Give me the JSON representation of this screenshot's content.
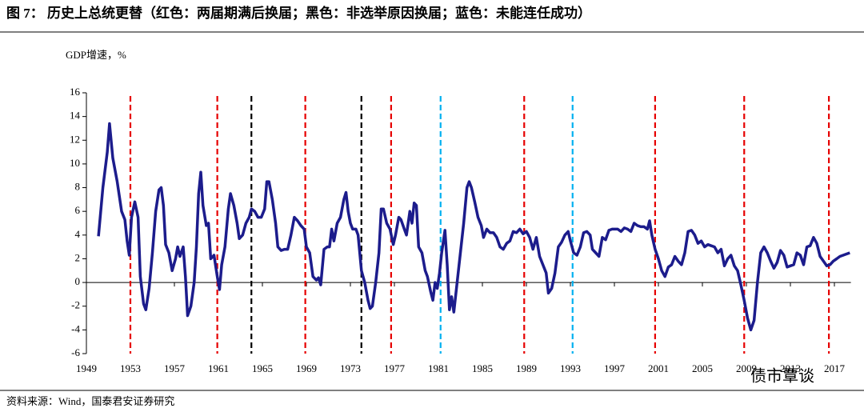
{
  "chart_data": {
    "type": "line",
    "title": "图 7： 历史上总统更替（红色：两届期满后换届；黑色：非选举原因换届；蓝色：未能连任成功）",
    "y_label": "GDP增速，%",
    "source": "资料来源：Wind，国泰君安证券研究",
    "watermark": "债市覃谈",
    "xlim": [
      1949,
      2018.5
    ],
    "xticks": [
      1949,
      1953,
      1957,
      1961,
      1965,
      1969,
      1973,
      1977,
      1981,
      1985,
      1989,
      1993,
      1997,
      2001,
      2005,
      2009,
      2013,
      2017
    ],
    "ylim": [
      -6,
      16
    ],
    "yticks": [
      -6,
      -4,
      -2,
      0,
      2,
      4,
      6,
      8,
      10,
      12,
      14,
      16
    ],
    "vlines": [
      {
        "x": 1953.0,
        "color": "#e60000"
      },
      {
        "x": 1960.9,
        "color": "#e60000"
      },
      {
        "x": 1964.0,
        "color": "#000000"
      },
      {
        "x": 1968.9,
        "color": "#e60000"
      },
      {
        "x": 1974.0,
        "color": "#000000"
      },
      {
        "x": 1976.7,
        "color": "#e60000"
      },
      {
        "x": 1981.2,
        "color": "#00b0f0"
      },
      {
        "x": 1988.8,
        "color": "#e60000"
      },
      {
        "x": 1993.2,
        "color": "#00b0f0"
      },
      {
        "x": 2000.7,
        "color": "#e60000"
      },
      {
        "x": 2008.8,
        "color": "#e60000"
      },
      {
        "x": 2016.5,
        "color": "#e60000"
      }
    ],
    "x": [
      1950.1,
      1950.5,
      1950.9,
      1951.1,
      1951.4,
      1951.8,
      1952.2,
      1952.5,
      1952.7,
      1952.9,
      1953.1,
      1953.4,
      1953.7,
      1953.9,
      1954.2,
      1954.4,
      1954.7,
      1955.0,
      1955.3,
      1955.6,
      1955.8,
      1956.0,
      1956.2,
      1956.5,
      1956.8,
      1957.1,
      1957.3,
      1957.5,
      1957.8,
      1958.0,
      1958.2,
      1958.5,
      1958.8,
      1959.0,
      1959.2,
      1959.4,
      1959.6,
      1959.9,
      1960.1,
      1960.3,
      1960.6,
      1960.9,
      1961.1,
      1961.3,
      1961.6,
      1961.9,
      1962.1,
      1962.4,
      1962.7,
      1962.9,
      1963.2,
      1963.5,
      1963.8,
      1964.0,
      1964.3,
      1964.6,
      1964.9,
      1965.2,
      1965.4,
      1965.6,
      1965.9,
      1966.2,
      1966.4,
      1966.7,
      1967.0,
      1967.3,
      1967.6,
      1967.9,
      1968.2,
      1968.5,
      1968.8,
      1969.0,
      1969.3,
      1969.6,
      1969.9,
      1970.1,
      1970.3,
      1970.6,
      1970.9,
      1971.1,
      1971.3,
      1971.5,
      1971.8,
      1972.1,
      1972.4,
      1972.6,
      1972.8,
      1973.0,
      1973.2,
      1973.5,
      1973.7,
      1974.0,
      1974.3,
      1974.6,
      1974.8,
      1975.0,
      1975.3,
      1975.6,
      1975.8,
      1976.0,
      1976.3,
      1976.6,
      1976.9,
      1977.1,
      1977.4,
      1977.6,
      1977.9,
      1978.1,
      1978.4,
      1978.6,
      1978.8,
      1979.0,
      1979.2,
      1979.5,
      1979.8,
      1980.0,
      1980.3,
      1980.5,
      1980.7,
      1980.9,
      1981.1,
      1981.3,
      1981.6,
      1981.8,
      1982.0,
      1982.2,
      1982.4,
      1982.7,
      1983.0,
      1983.3,
      1983.6,
      1983.8,
      1984.0,
      1984.3,
      1984.6,
      1984.9,
      1985.1,
      1985.4,
      1985.7,
      1986.0,
      1986.3,
      1986.6,
      1986.9,
      1987.2,
      1987.5,
      1987.8,
      1988.1,
      1988.4,
      1988.7,
      1989.0,
      1989.3,
      1989.6,
      1989.9,
      1990.2,
      1990.5,
      1990.8,
      1991.0,
      1991.3,
      1991.6,
      1991.9,
      1992.2,
      1992.5,
      1992.8,
      1993.0,
      1993.3,
      1993.6,
      1993.9,
      1994.2,
      1994.5,
      1994.8,
      1995.0,
      1995.3,
      1995.6,
      1995.9,
      1996.2,
      1996.5,
      1996.8,
      1997.0,
      1997.3,
      1997.6,
      1997.9,
      1998.2,
      1998.5,
      1998.8,
      1999.1,
      1999.4,
      1999.7,
      2000.0,
      2000.2,
      2000.4,
      2000.7,
      2001.0,
      2001.3,
      2001.6,
      2001.9,
      2002.2,
      2002.5,
      2002.8,
      2003.1,
      2003.4,
      2003.7,
      2004.0,
      2004.3,
      2004.6,
      2004.9,
      2005.2,
      2005.5,
      2005.8,
      2006.1,
      2006.4,
      2006.7,
      2007.0,
      2007.3,
      2007.6,
      2007.9,
      2008.2,
      2008.5,
      2008.8,
      2009.1,
      2009.4,
      2009.7,
      2010.0,
      2010.3,
      2010.6,
      2010.9,
      2011.2,
      2011.5,
      2011.8,
      2012.1,
      2012.4,
      2012.7,
      2013.0,
      2013.3,
      2013.6,
      2013.9,
      2014.2,
      2014.5,
      2014.8,
      2015.1,
      2015.4,
      2015.7,
      2016.0,
      2016.3,
      2016.6,
      2016.9,
      2017.2,
      2017.5,
      2017.8,
      2018.1,
      2018.4
    ],
    "series": [
      {
        "name": "GDP增速",
        "color": "#1c1c8c",
        "values": [
          3.9,
          8,
          11,
          13.4,
          10.5,
          8.5,
          6,
          5.3,
          3.5,
          2.3,
          5.5,
          6.8,
          5.5,
          0.5,
          -1.8,
          -2.3,
          -0.5,
          2.5,
          6,
          7.8,
          8,
          6.5,
          3.2,
          2.5,
          1,
          2,
          3,
          2.2,
          3,
          0.5,
          -2.8,
          -2,
          0,
          3,
          7.5,
          9.3,
          6.5,
          4.8,
          5,
          2,
          2.3,
          0.5,
          -0.6,
          1.5,
          3,
          6.2,
          7.5,
          6.5,
          5,
          3.7,
          4,
          5,
          5.5,
          6.2,
          6,
          5.5,
          5.5,
          6.2,
          8.5,
          8.5,
          7,
          5,
          3,
          2.7,
          2.8,
          2.8,
          4,
          5.5,
          5.2,
          4.8,
          4.5,
          3,
          2.5,
          0.5,
          0.2,
          0.4,
          -0.2,
          2.8,
          3,
          3,
          4.5,
          3.5,
          5,
          5.5,
          7,
          7.6,
          6,
          5,
          4.5,
          4.5,
          4,
          1,
          0,
          -1.5,
          -2.2,
          -2,
          0,
          2.5,
          6.2,
          6.2,
          5,
          4.5,
          3.2,
          4,
          5.5,
          5.3,
          4.5,
          4,
          6,
          5,
          6.7,
          6.5,
          3,
          2.5,
          1,
          0.5,
          -0.8,
          -1.5,
          0,
          -0.5,
          0.8,
          2.5,
          4.4,
          1.5,
          -2.3,
          -1.2,
          -2.5,
          0,
          2.5,
          5,
          8,
          8.5,
          8,
          6.8,
          5.5,
          4.8,
          3.8,
          4.5,
          4.2,
          4.2,
          3.8,
          3,
          2.8,
          3.3,
          3.5,
          4.3,
          4.2,
          4.5,
          4.1,
          4.3,
          3.8,
          2.8,
          3.8,
          2.2,
          1.5,
          0.8,
          -0.9,
          -0.5,
          0.8,
          3,
          3.4,
          4,
          4.3,
          3.5,
          2.5,
          2.3,
          3,
          4.2,
          4.3,
          4,
          2.8,
          2.5,
          2.2,
          3.8,
          3.6,
          4.4,
          4.5,
          4.5,
          4.5,
          4.3,
          4.6,
          4.5,
          4.3,
          5,
          4.8,
          4.7,
          4.7,
          4.5,
          5.2,
          4,
          2.8,
          2,
          1,
          0.5,
          1.3,
          1.5,
          2.2,
          1.8,
          1.5,
          2.5,
          4.3,
          4.4,
          4,
          3.3,
          3.5,
          3,
          3.2,
          3.1,
          3,
          2.5,
          2.8,
          1.4,
          2,
          2.3,
          1.4,
          1,
          -0.2,
          -1.5,
          -3,
          -4,
          -3.2,
          0,
          2.5,
          3,
          2.5,
          1.8,
          1.2,
          1.7,
          2.7,
          2.3,
          1.3,
          1.4,
          1.5,
          2.5,
          2.3,
          1.5,
          3,
          3.1,
          3.8,
          3.3,
          2.2,
          1.8,
          1.4,
          1.5,
          1.8,
          2,
          2.2,
          2.3,
          2.4,
          2.5
        ]
      }
    ]
  }
}
